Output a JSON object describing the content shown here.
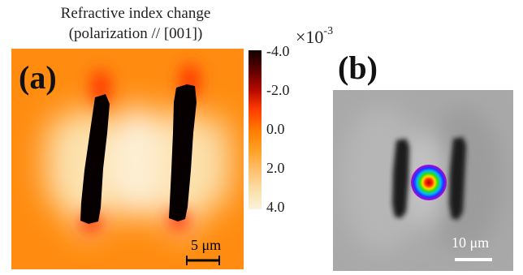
{
  "figure": {
    "title_line1": "Refractive index change",
    "title_line2": "(polarization // [001])",
    "panel_a_label": "(a)",
    "panel_b_label": "(b)",
    "colorbar": {
      "exponent_base": "×10",
      "exponent_power": "-3",
      "ticks": [
        "-4.0",
        "-2.0",
        "0.0",
        "2.0",
        "4.0"
      ],
      "colors": [
        "#120000",
        "#b50a00",
        "#ff7a00",
        "#ffbf6a",
        "#fbf2dc"
      ]
    },
    "scale_a": "5 μm",
    "scale_b": "10 μm"
  }
}
